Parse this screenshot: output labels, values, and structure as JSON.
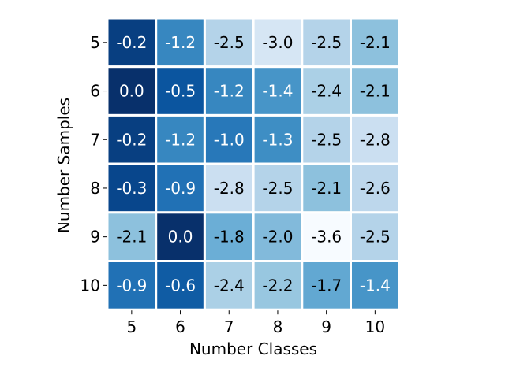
{
  "chart_data": {
    "type": "heatmap",
    "title": "",
    "xlabel": "Number Classes",
    "ylabel": "Number Samples",
    "x_categories": [
      "5",
      "6",
      "7",
      "8",
      "9",
      "10"
    ],
    "y_categories": [
      "5",
      "6",
      "7",
      "8",
      "9",
      "10"
    ],
    "values": [
      [
        -0.2,
        -1.2,
        -2.5,
        -3.0,
        -2.5,
        -2.1
      ],
      [
        0.0,
        -0.5,
        -1.2,
        -1.4,
        -2.4,
        -2.1
      ],
      [
        -0.2,
        -1.2,
        -1.0,
        -1.3,
        -2.5,
        -2.8
      ],
      [
        -0.3,
        -0.9,
        -2.8,
        -2.5,
        -2.1,
        -2.6
      ],
      [
        -2.1,
        0.0,
        -1.8,
        -2.0,
        -3.6,
        -2.5
      ],
      [
        -0.9,
        -0.6,
        -2.4,
        -2.2,
        -1.7,
        -1.4
      ]
    ],
    "cell_labels": [
      [
        "-0.2",
        "-1.2",
        "-2.5",
        "-3.0",
        "-2.5",
        "-2.1"
      ],
      [
        "0.0",
        "-0.5",
        "-1.2",
        "-1.4",
        "-2.4",
        "-2.1"
      ],
      [
        "-0.2",
        "-1.2",
        "-1.0",
        "-1.3",
        "-2.5",
        "-2.8"
      ],
      [
        "-0.3",
        "-0.9",
        "-2.8",
        "-2.5",
        "-2.1",
        "-2.6"
      ],
      [
        "-2.1",
        "0.0",
        "-1.8",
        "-2.0",
        "-3.6",
        "-2.5"
      ],
      [
        "-0.9",
        "-0.6",
        "-2.4",
        "-2.2",
        "-1.7",
        "-1.4"
      ]
    ],
    "colormap": "Blues",
    "vmin": -3.6,
    "vmax": 0.0,
    "legend": "none",
    "grid": false,
    "colors": {
      "cell_border": "#ffffff",
      "light_text": "#ffffff",
      "dark_text": "#000000"
    }
  }
}
